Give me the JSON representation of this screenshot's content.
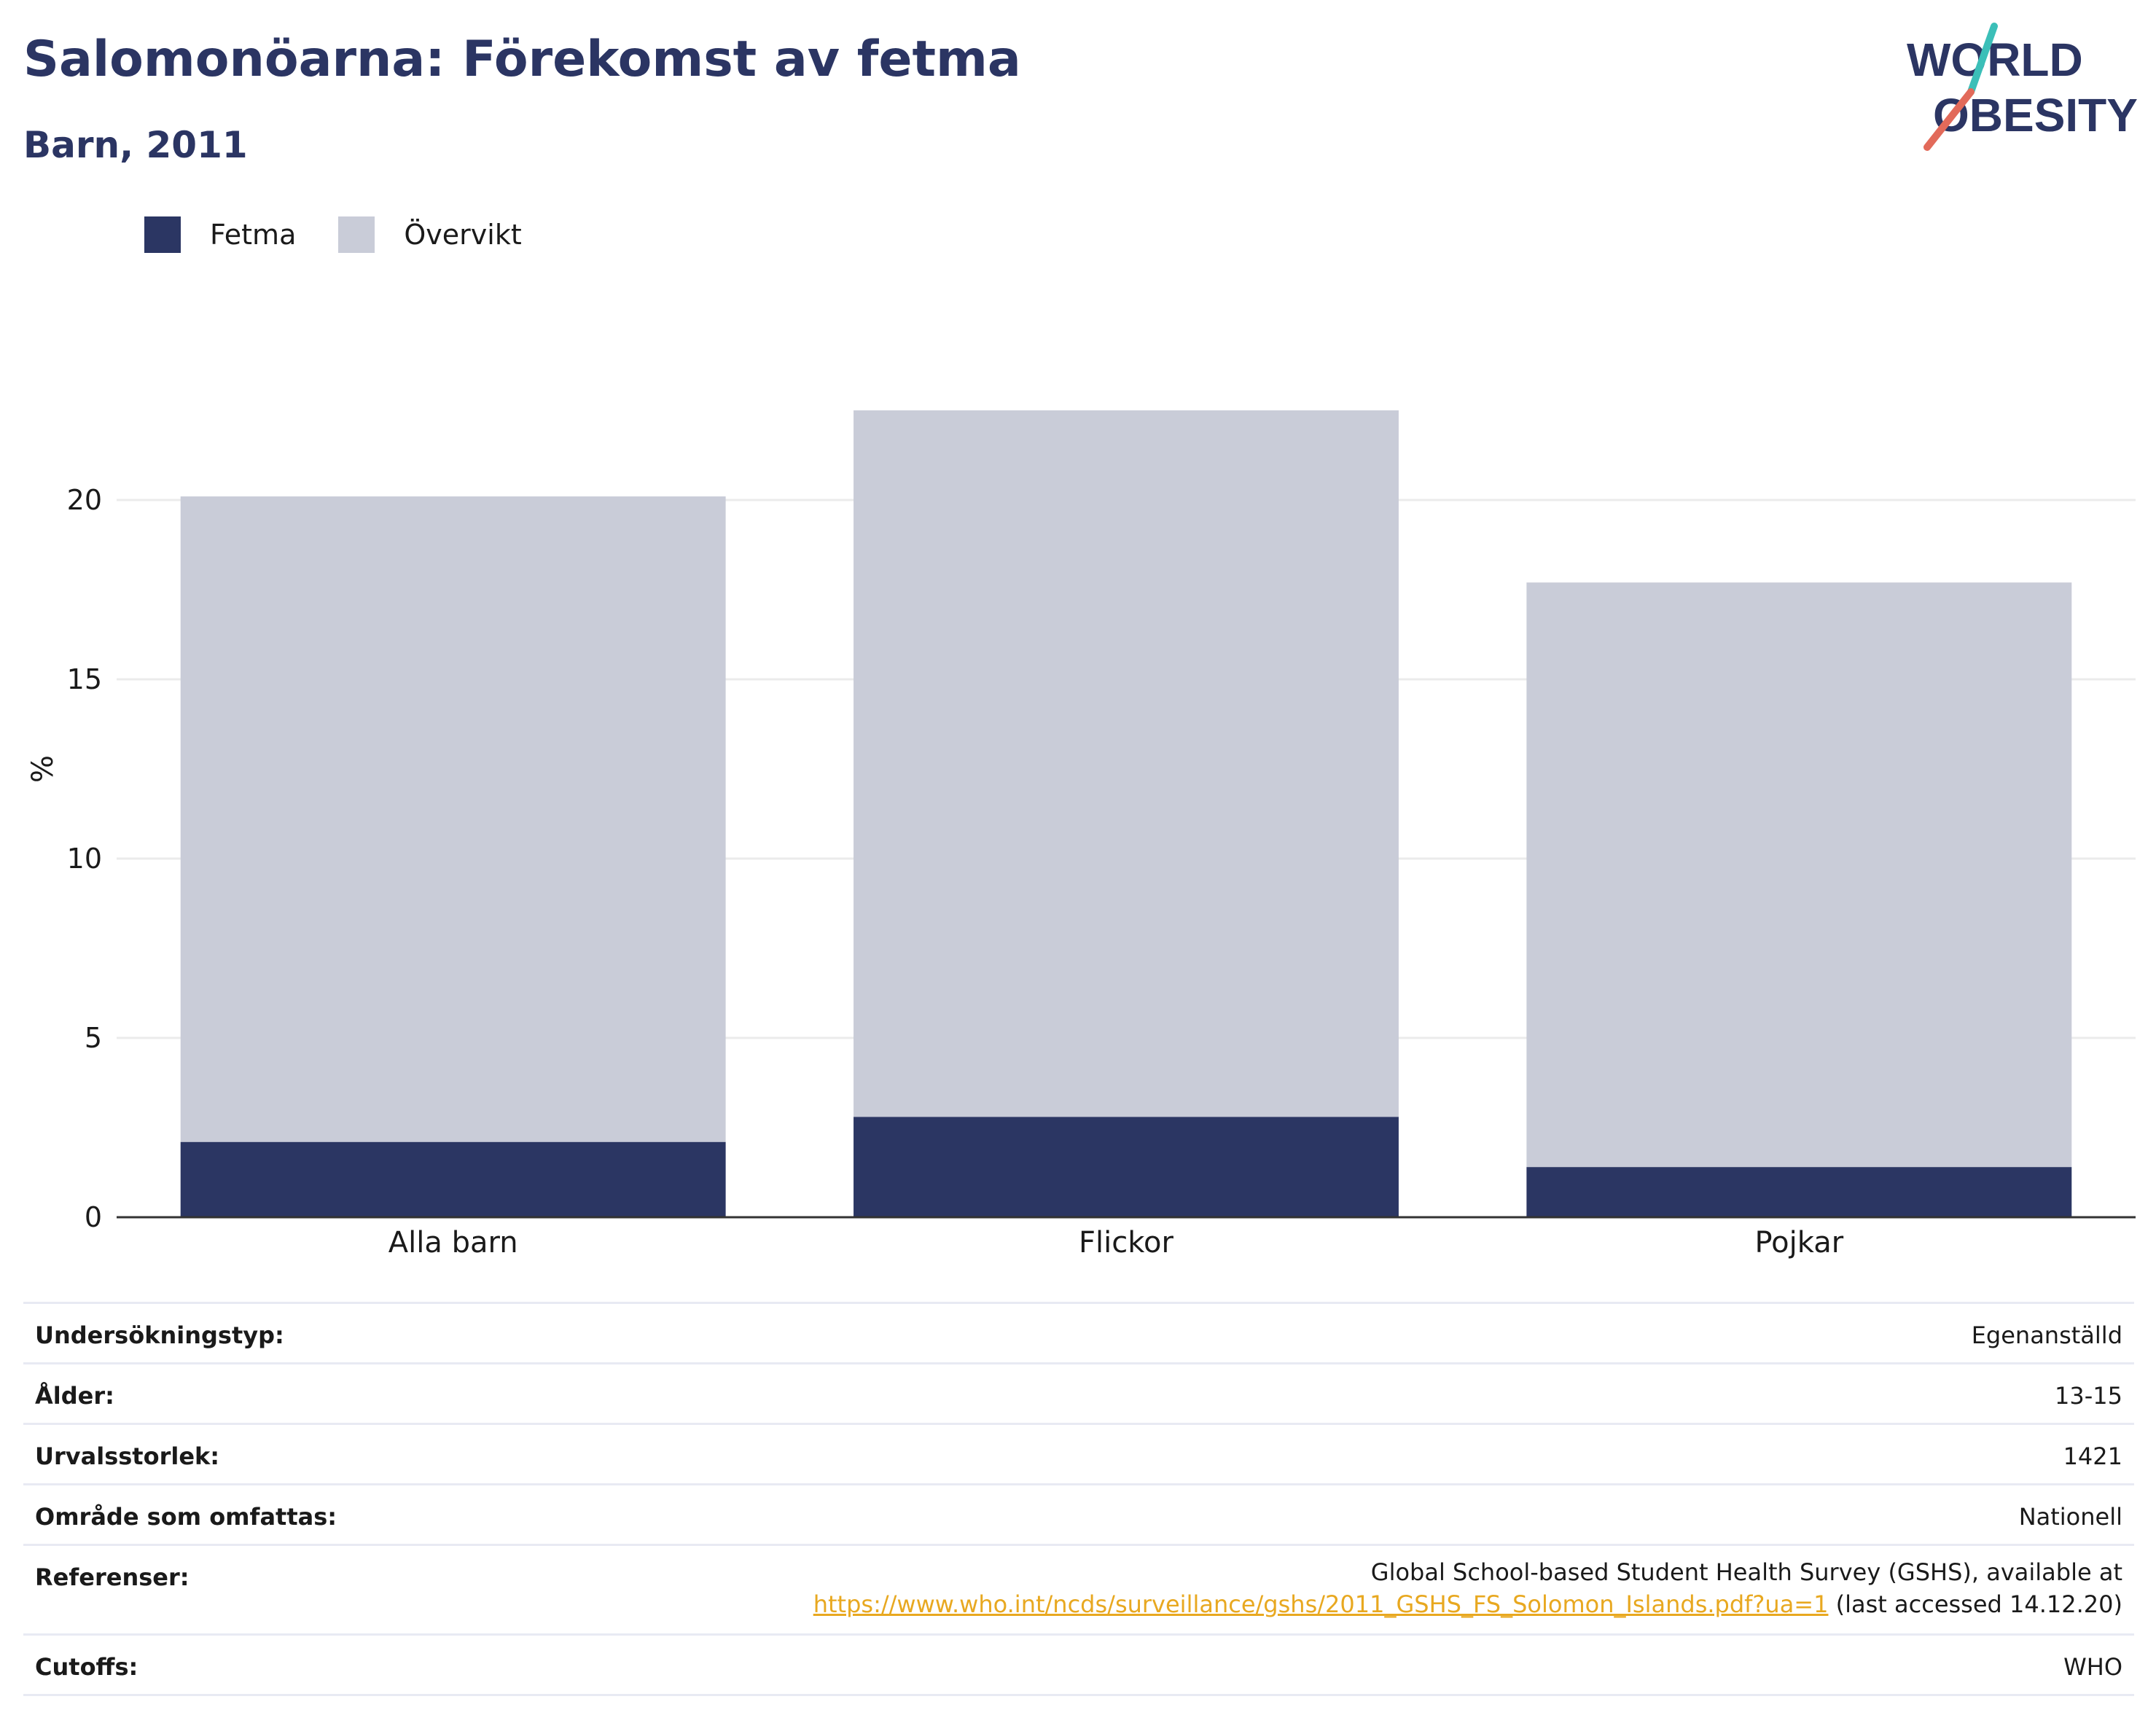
{
  "header": {
    "title": "Salomonöarna: Förekomst av fetma",
    "subtitle": "Barn, 2011"
  },
  "logo": {
    "line1": "WORLD",
    "line2": "OBESITY"
  },
  "legend": [
    {
      "label": "Fetma",
      "color": "#2b3663"
    },
    {
      "label": "Övervikt",
      "color": "#c9ccd8"
    }
  ],
  "chart_data": {
    "type": "bar",
    "stacked": true,
    "categories": [
      "Alla barn",
      "Flickor",
      "Pojkar"
    ],
    "series": [
      {
        "name": "Fetma",
        "color": "#2b3663",
        "values": [
          2.1,
          2.8,
          1.4
        ]
      },
      {
        "name": "Övervikt",
        "color": "#c9ccd8",
        "values": [
          18.0,
          19.7,
          16.3
        ]
      }
    ],
    "totals": [
      20.1,
      22.5,
      17.7
    ],
    "ylabel": "%",
    "xlabel": "",
    "ylim": [
      0,
      25
    ],
    "yticks": [
      0,
      5,
      10,
      15,
      20
    ],
    "grid": true,
    "legend_position": "top-left"
  },
  "info": {
    "survey_type": {
      "label": "Undersökningstyp:",
      "value": "Egenanställd"
    },
    "age": {
      "label": "Ålder:",
      "value": "13-15"
    },
    "sample_size": {
      "label": "Urvalsstorlek:",
      "value": "1421"
    },
    "area": {
      "label": "Område som omfattas:",
      "value": "Nationell"
    },
    "references": {
      "label": "Referenser:",
      "line1": "Global School-based Student Health Survey (GSHS), available at",
      "url": "https://www.who.int/ncds/surveillance/gshs/2011_GSHS_FS_Solomon_Islands.pdf?ua=1",
      "suffix": " (last accessed 14.12.20)"
    },
    "cutoffs": {
      "label": "Cutoffs:",
      "value": "WHO"
    }
  }
}
